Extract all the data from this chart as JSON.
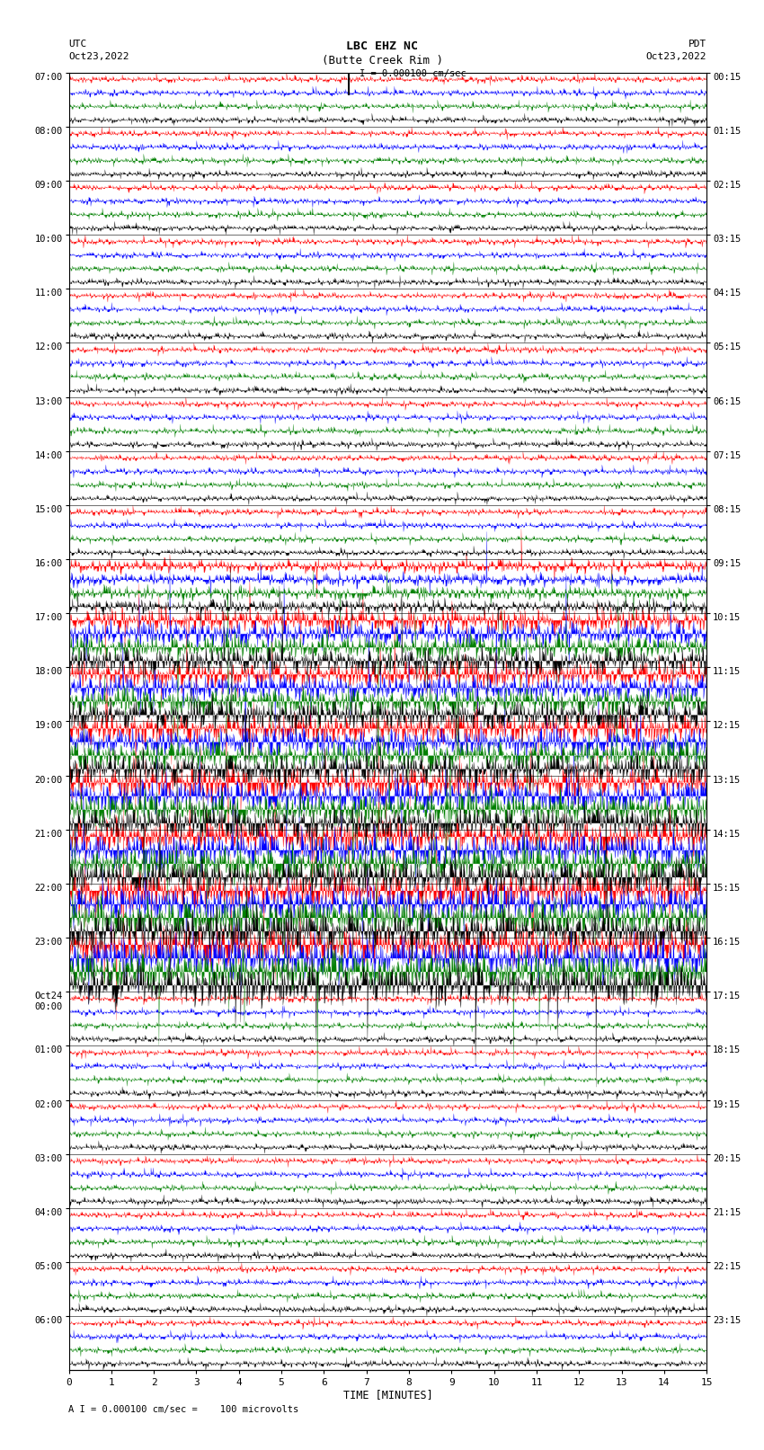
{
  "title_line1": "LBC EHZ NC",
  "title_line2": "(Butte Creek Rim )",
  "scale_text": "I = 0.000100 cm/sec",
  "left_label_top": "UTC",
  "left_label_date": "Oct23,2022",
  "right_label_top": "PDT",
  "right_label_date": "Oct23,2022",
  "bottom_label": "TIME [MINUTES]",
  "bottom_note": "A I = 0.000100 cm/sec =    100 microvolts",
  "utc_times": [
    "07:00",
    "08:00",
    "09:00",
    "10:00",
    "11:00",
    "12:00",
    "13:00",
    "14:00",
    "15:00",
    "16:00",
    "17:00",
    "18:00",
    "19:00",
    "20:00",
    "21:00",
    "22:00",
    "23:00",
    "Oct24\n00:00",
    "01:00",
    "02:00",
    "03:00",
    "04:00",
    "05:00",
    "06:00"
  ],
  "pdt_times": [
    "00:15",
    "01:15",
    "02:15",
    "03:15",
    "04:15",
    "05:15",
    "06:15",
    "07:15",
    "08:15",
    "09:15",
    "10:15",
    "11:15",
    "12:15",
    "13:15",
    "14:15",
    "15:15",
    "16:15",
    "17:15",
    "18:15",
    "19:15",
    "20:15",
    "21:15",
    "22:15",
    "23:15"
  ],
  "n_rows": 24,
  "n_cols": 1800,
  "colors": [
    "red",
    "blue",
    "green",
    "black"
  ],
  "bg_color": "white",
  "fig_width": 8.5,
  "fig_height": 16.13,
  "dpi": 100
}
